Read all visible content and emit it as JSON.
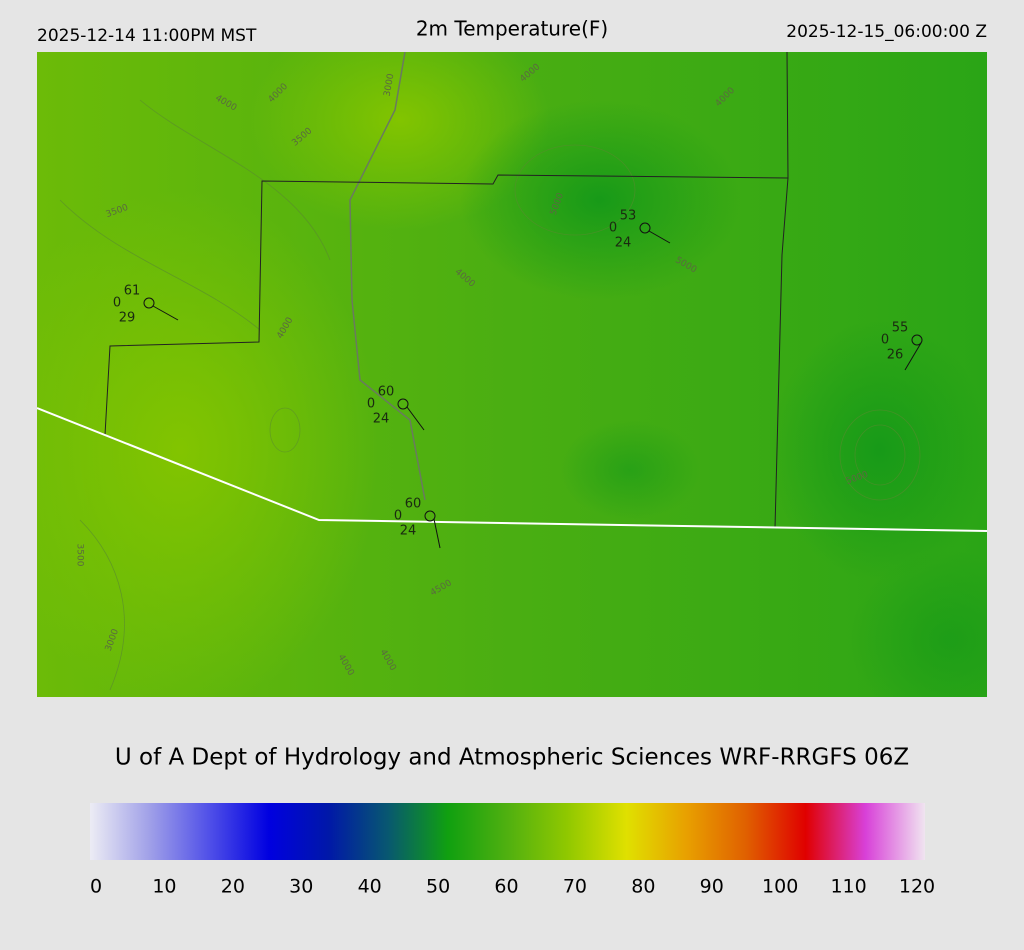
{
  "header": {
    "left": "2025-12-14 11:00PM MST",
    "title": "2m Temperature(F)",
    "right": "2025-12-15_06:00:00 Z"
  },
  "stations": [
    {
      "temp": 61,
      "code": 0,
      "dew": 29
    },
    {
      "temp": 53,
      "code": 0,
      "dew": 24
    },
    {
      "temp": 55,
      "code": 0,
      "dew": 26
    },
    {
      "temp": 60,
      "code": 0,
      "dew": 24
    },
    {
      "temp": 60,
      "code": 0,
      "dew": 24
    }
  ],
  "contour_labels": [
    4000,
    4000,
    3000,
    3500,
    3500,
    4000,
    4000,
    4000,
    4000,
    3500,
    3000,
    4000,
    4000,
    4500,
    5000,
    5000,
    5000
  ],
  "footer": "U of A Dept of Hydrology and Atmospheric Sciences WRF-RRGFS 06Z",
  "colorbar": {
    "range": [
      0,
      120
    ],
    "ticks": [
      0,
      10,
      20,
      30,
      40,
      50,
      60,
      70,
      80,
      90,
      100,
      110,
      120
    ],
    "colors": [
      "#ececf4",
      "#a0a0e8",
      "#5050e8",
      "#0000e0",
      "#0018a8",
      "#085870",
      "#10a010",
      "#50b010",
      "#90c800",
      "#e0e000",
      "#e8a000",
      "#e06000",
      "#e00000",
      "#d840d8",
      "#f0e4f0"
    ]
  }
}
